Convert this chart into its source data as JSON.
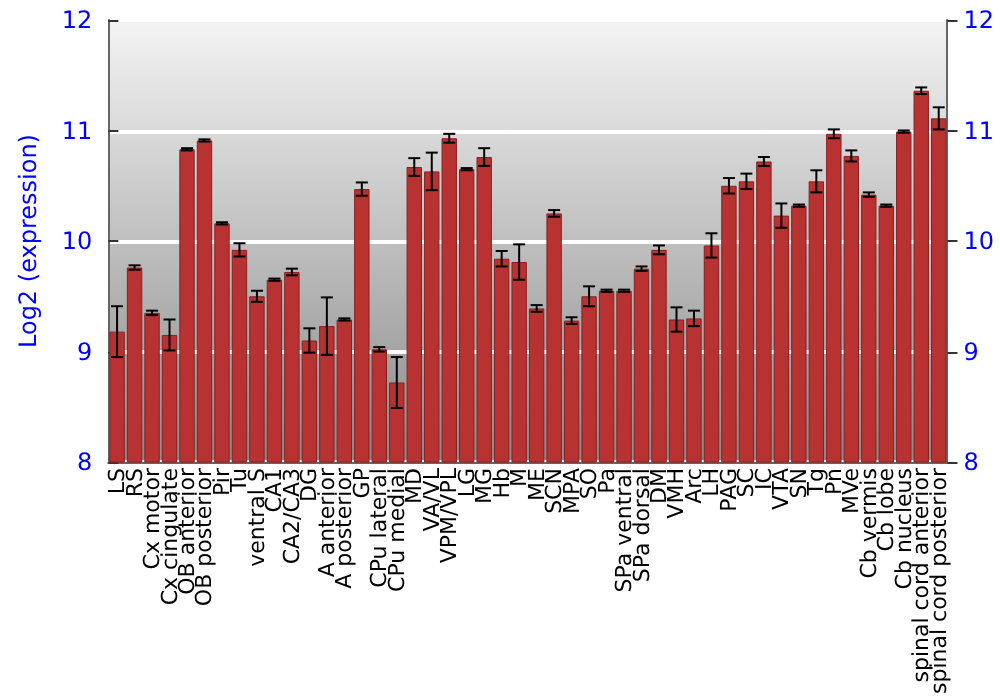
{
  "chart_data": {
    "type": "bar",
    "ylabel": "Log2 (expression)",
    "categories": [
      "LS",
      "RS",
      "Cx motor",
      "Cx cingulate",
      "OB anterior",
      "OB posterior",
      "Pir",
      "Tu",
      "ventral S",
      "CA1",
      "CA2/CA3",
      "DG",
      "A anterior",
      "A posterior",
      "GP",
      "CPu lateral",
      "CPu medial",
      "MD",
      "VA/VL",
      "VPM/VPL",
      "LG",
      "MG",
      "Hb",
      "M",
      "ME",
      "SCN",
      "MPA",
      "SO",
      "Pa",
      "SPa ventral",
      "SPa dorsal",
      "DM",
      "VMH",
      "Arc",
      "LH",
      "PAG",
      "SC",
      "IC",
      "VTA",
      "SN",
      "Tg",
      "Pn",
      "MVe",
      "Cb vermis",
      "Cb lobe",
      "Cb nucleus",
      "spinal cord anterior",
      "spinal cord posterior"
    ],
    "series": [
      {
        "color": "#b83232",
        "values": [
          9.18,
          9.76,
          9.35,
          9.15,
          10.83,
          10.91,
          10.16,
          9.92,
          9.5,
          9.65,
          9.72,
          9.1,
          9.23,
          9.29,
          10.47,
          9.02,
          8.72,
          10.67,
          10.63,
          10.93,
          10.65,
          10.76,
          9.84,
          9.81,
          9.39,
          10.25,
          9.28,
          9.5,
          9.55,
          9.55,
          9.75,
          9.92,
          9.29,
          9.3,
          9.96,
          10.5,
          10.54,
          10.72,
          10.23,
          10.32,
          10.54,
          10.97,
          10.77,
          10.42,
          10.32,
          10.99,
          11.36,
          11.11
        ],
        "errors": [
          0.23,
          0.02,
          0.02,
          0.14,
          0.01,
          0.01,
          0.01,
          0.06,
          0.05,
          0.01,
          0.03,
          0.11,
          0.26,
          0.01,
          0.06,
          0.02,
          0.23,
          0.08,
          0.17,
          0.04,
          0.01,
          0.08,
          0.07,
          0.16,
          0.03,
          0.03,
          0.03,
          0.09,
          0.01,
          0.01,
          0.02,
          0.04,
          0.11,
          0.07,
          0.11,
          0.07,
          0.07,
          0.04,
          0.11,
          0.01,
          0.1,
          0.04,
          0.05,
          0.02,
          0.01,
          0.01,
          0.03,
          0.1
        ]
      }
    ],
    "ylim": [
      8,
      12
    ],
    "yticks": [
      8,
      9,
      10,
      11,
      12
    ],
    "y2lim": [
      8,
      12
    ],
    "y2ticks": [
      8,
      9,
      10,
      11,
      12
    ],
    "grid": "y"
  }
}
